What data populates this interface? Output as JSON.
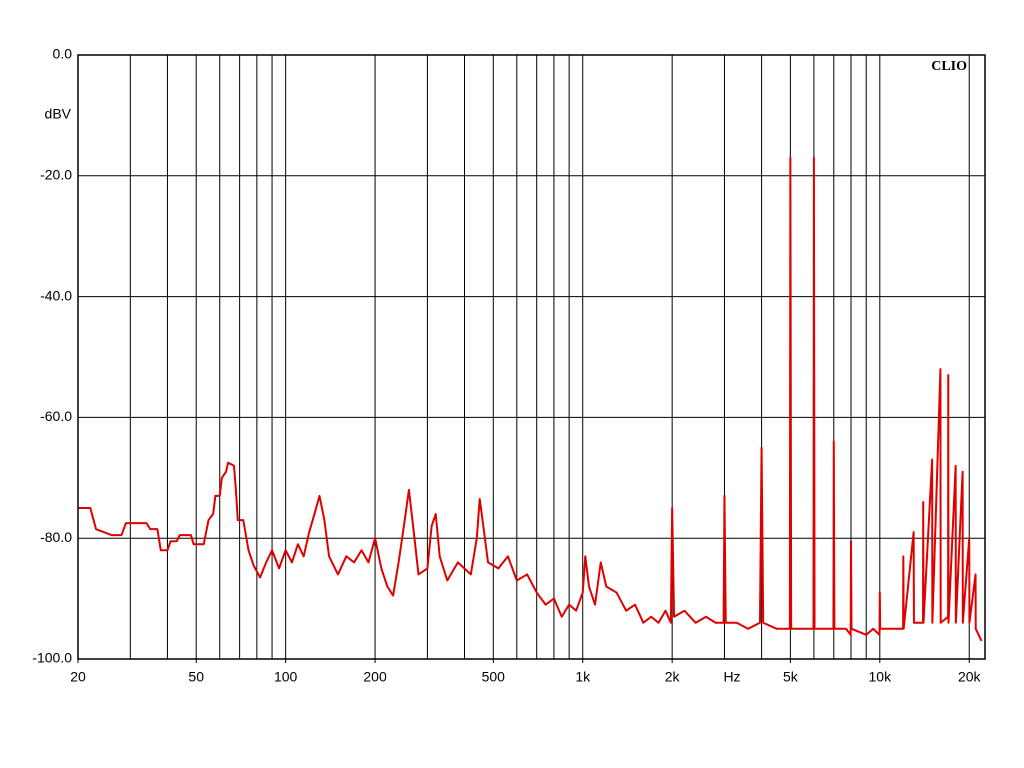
{
  "chart_data": {
    "type": "line",
    "watermark": "CLIO",
    "y_label": "dBV",
    "x_label": "Hz",
    "xlim": [
      20,
      22600
    ],
    "ylim": [
      -100,
      0
    ],
    "log_x": true,
    "grid": true,
    "xticks": [
      20,
      50,
      100,
      200,
      500,
      {
        "value": 1000,
        "label": "1k"
      },
      {
        "value": 2000,
        "label": "2k"
      },
      {
        "value": 5000,
        "label": "5k"
      },
      {
        "value": 10000,
        "label": "10k"
      },
      {
        "value": 20000,
        "label": "20k"
      }
    ],
    "xgrid": [
      20,
      30,
      40,
      50,
      60,
      70,
      80,
      90,
      100,
      200,
      300,
      400,
      500,
      600,
      700,
      800,
      900,
      1000,
      2000,
      3000,
      4000,
      5000,
      6000,
      7000,
      8000,
      9000,
      10000,
      20000
    ],
    "yticks": [
      {
        "value": 0,
        "label": "0.0"
      },
      {
        "value": -20,
        "label": "-20.0"
      },
      {
        "value": -40,
        "label": "-40.0"
      },
      {
        "value": -60,
        "label": "-60.0"
      },
      {
        "value": -80,
        "label": "-80.0"
      },
      {
        "value": -100,
        "label": "-100.0"
      }
    ],
    "series": [
      {
        "color": "#e00000",
        "x": [
          20,
          22,
          23,
          26,
          28,
          29,
          34,
          35,
          37,
          38,
          40,
          41,
          43,
          44,
          48,
          49,
          53,
          55,
          57,
          58,
          60,
          61,
          63,
          64,
          67,
          68,
          69,
          72,
          75,
          78,
          82,
          86,
          90,
          95,
          100,
          105,
          110,
          115,
          120,
          125,
          130,
          135,
          140,
          150,
          160,
          170,
          180,
          190,
          200,
          210,
          220,
          230,
          240,
          250,
          260,
          270,
          280,
          300,
          310,
          320,
          330,
          350,
          380,
          420,
          440,
          450,
          460,
          480,
          520,
          560,
          600,
          650,
          700,
          750,
          800,
          850,
          900,
          950,
          1000,
          1020,
          1050,
          1100,
          1150,
          1200,
          1300,
          1400,
          1500,
          1600,
          1700,
          1800,
          1900,
          1980,
          2000,
          2030,
          2200,
          2400,
          2600,
          2800,
          2980,
          3000,
          3030,
          3300,
          3600,
          3950,
          4000,
          4050,
          4500,
          4980,
          5000,
          5030,
          5500,
          5980,
          6000,
          6030,
          6600,
          6980,
          7000,
          7030,
          7700,
          7980,
          8000,
          8030,
          9000,
          9500,
          9980,
          10000,
          10030,
          11000,
          11980,
          12000,
          12030,
          13000,
          13030,
          13980,
          14000,
          14030,
          15000,
          15030,
          16000,
          16030,
          16980,
          17000,
          17030,
          18000,
          18030,
          19000,
          19030,
          20000,
          20030,
          21000,
          21030,
          22000
        ],
        "values": [
          -75,
          -75,
          -78.5,
          -79.5,
          -79.5,
          -77.5,
          -77.5,
          -78.5,
          -78.5,
          -82,
          -82,
          -80.5,
          -80.5,
          -79.5,
          -79.5,
          -81,
          -81,
          -77,
          -76,
          -73,
          -73,
          -70,
          -69,
          -67.5,
          -68,
          -72,
          -77,
          -77,
          -82,
          -84.5,
          -86.5,
          -84,
          -82,
          -85,
          -82,
          -84,
          -81,
          -83,
          -79,
          -76,
          -73,
          -77,
          -83,
          -86,
          -83,
          -84,
          -82,
          -84,
          -80,
          -85,
          -88,
          -89.5,
          -84,
          -78,
          -72,
          -79,
          -86,
          -85,
          -78,
          -76,
          -83,
          -87,
          -84,
          -86,
          -80,
          -73.5,
          -77,
          -84,
          -85,
          -83,
          -87,
          -86,
          -89,
          -91,
          -90,
          -93,
          -91,
          -92,
          -89,
          -83,
          -88,
          -91,
          -84,
          -88,
          -89,
          -92,
          -91,
          -94,
          -93,
          -94,
          -92,
          -94,
          -75,
          -93,
          -92,
          -94,
          -93,
          -94,
          -94,
          -73,
          -94,
          -94,
          -95,
          -94,
          -65,
          -94,
          -95,
          -95,
          -17,
          -95,
          -95,
          -95,
          -17,
          -95,
          -95,
          -95,
          -64,
          -95,
          -95,
          -96,
          -80.5,
          -95,
          -96,
          -95,
          -96,
          -89,
          -95,
          -95,
          -95,
          -83,
          -95,
          -79,
          -94,
          -94,
          -74,
          -94,
          -67,
          -94,
          -52,
          -94,
          -93,
          -53,
          -94,
          -68,
          -94,
          -69,
          -94,
          -80,
          -94,
          -86,
          -95,
          -97
        ]
      }
    ]
  }
}
